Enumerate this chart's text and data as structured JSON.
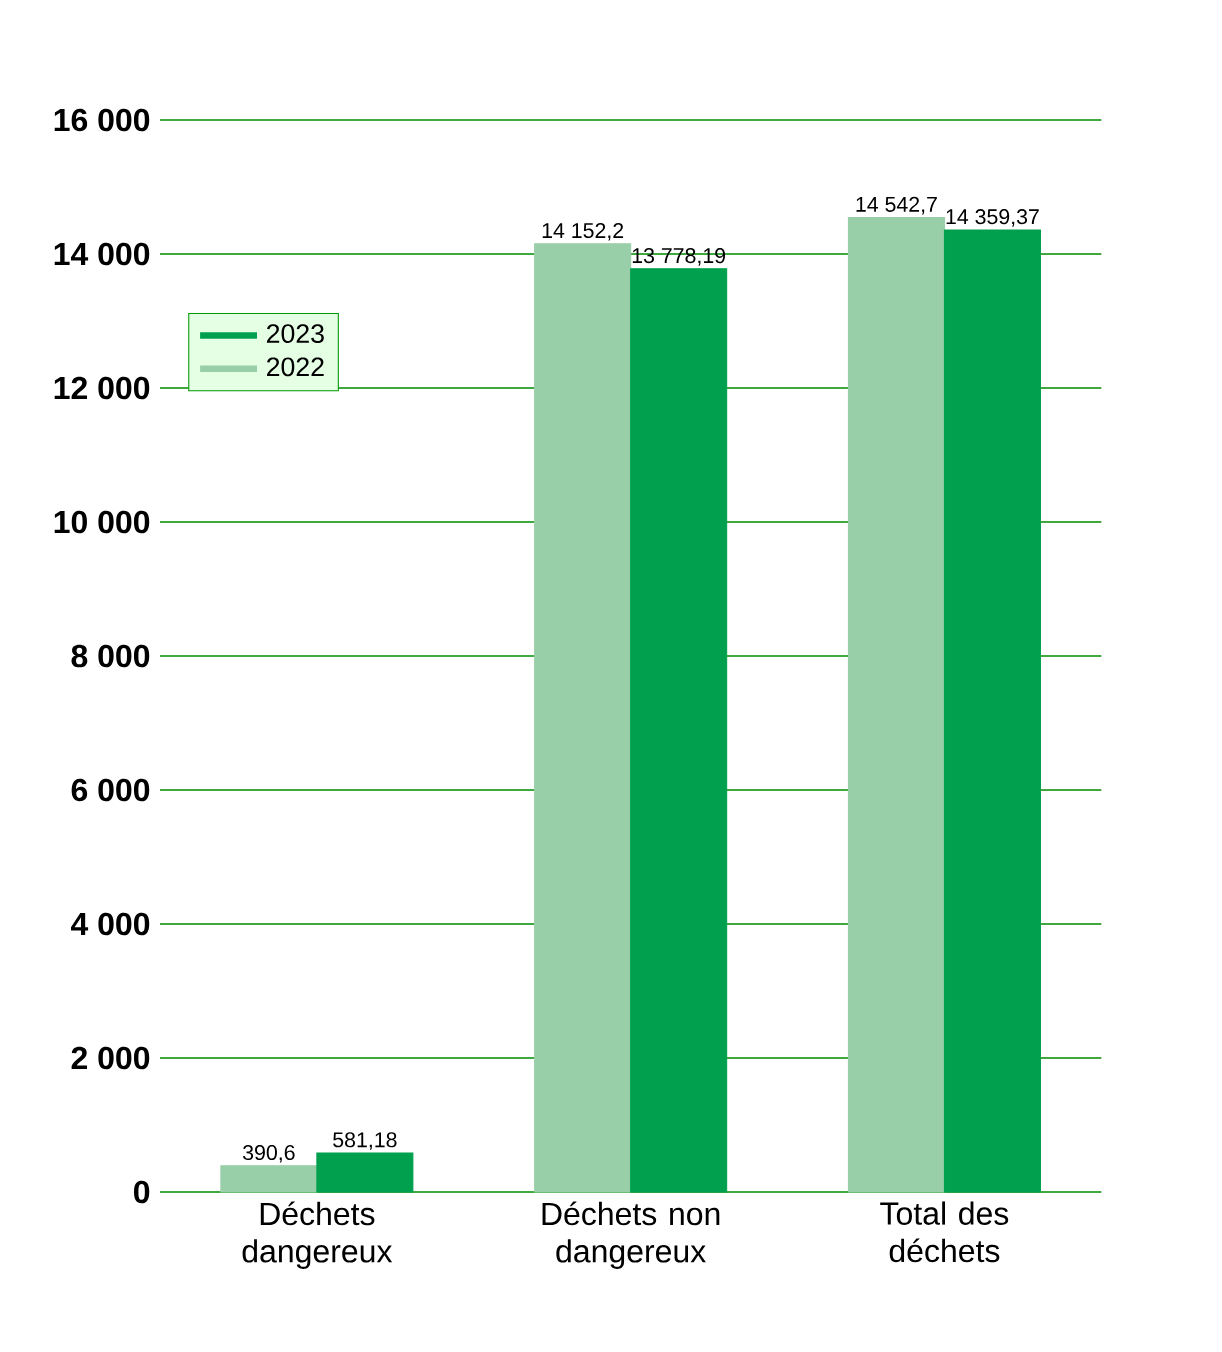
{
  "chart_data": {
    "type": "bar",
    "categories": [
      "Déchets dangereux",
      "Déchets non dangereux",
      "Total des déchets"
    ],
    "series": [
      {
        "name": "2022",
        "color": "#99cfa8",
        "values": [
          390.6,
          14152.2,
          14542.7
        ],
        "value_labels": [
          "390,6",
          "14 152,2",
          "14 542,7"
        ]
      },
      {
        "name": "2023",
        "color": "#00a04f",
        "values": [
          581.18,
          13778.19,
          14359.37
        ],
        "value_labels": [
          "581,18",
          "13 778,19",
          "14 359,37"
        ]
      }
    ],
    "ylim": [
      0,
      16000
    ],
    "yticks": [
      {
        "value": 0,
        "label": "0"
      },
      {
        "value": 2000,
        "label": "2 000"
      },
      {
        "value": 4000,
        "label": "4 000"
      },
      {
        "value": 6000,
        "label": "6 000"
      },
      {
        "value": 8000,
        "label": "8 000"
      },
      {
        "value": 10000,
        "label": "10 000"
      },
      {
        "value": 12000,
        "label": "12 000"
      },
      {
        "value": 14000,
        "label": "14 000"
      },
      {
        "value": 16000,
        "label": "16 000"
      }
    ],
    "grid": "y",
    "legend": "top left"
  }
}
